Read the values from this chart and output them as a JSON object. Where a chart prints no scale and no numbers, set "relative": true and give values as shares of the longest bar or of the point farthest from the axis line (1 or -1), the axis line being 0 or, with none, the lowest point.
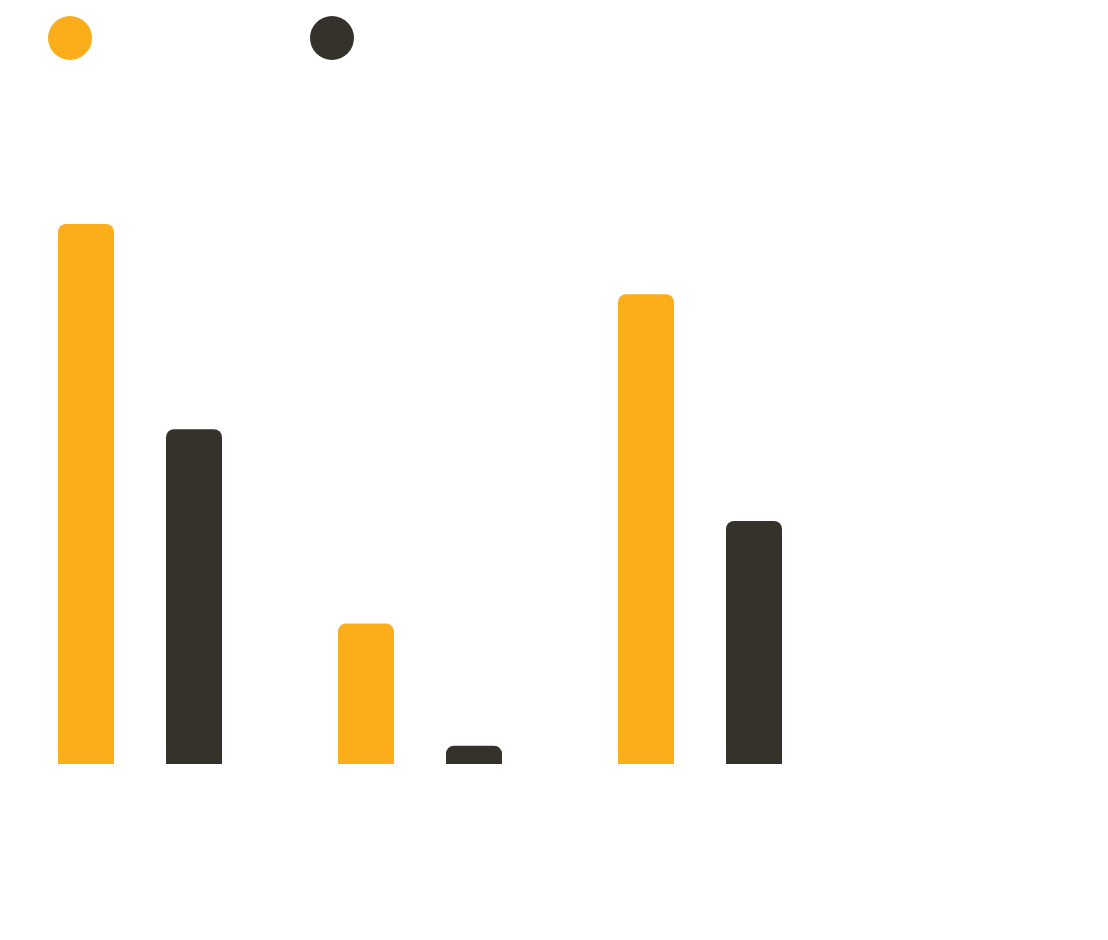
{
  "chart_data": {
    "type": "bar",
    "relative": true,
    "categories": [
      null,
      null,
      null
    ],
    "series": [
      {
        "color": "#fcad1a",
        "values": [
          1,
          0.26,
          0.87
        ]
      },
      {
        "color": "#35322b",
        "values": [
          0.62,
          0.034,
          0.45
        ]
      }
    ]
  }
}
